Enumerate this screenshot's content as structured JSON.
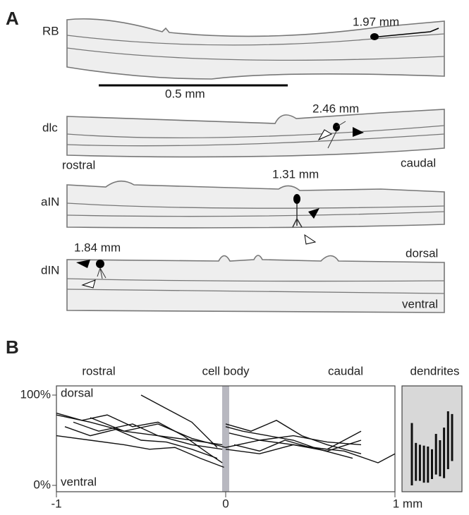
{
  "panel_a": {
    "label": "A",
    "scale_bar": "0.5 mm",
    "rostral": "rostral",
    "caudal": "caudal",
    "dorsal": "dorsal",
    "ventral": "ventral",
    "neurons": [
      {
        "name": "RB",
        "distance": "1.97 mm"
      },
      {
        "name": "dlc",
        "distance": "2.46 mm"
      },
      {
        "name": "aIN",
        "distance": "1.31 mm"
      },
      {
        "name": "dIN",
        "distance": "1.84 mm"
      }
    ]
  },
  "panel_b": {
    "label": "B",
    "chart_data": {
      "type": "line",
      "color": "#111111",
      "regions": [
        "rostral",
        "cell body",
        "caudal"
      ],
      "position_labels": [
        "dorsal",
        "ventral"
      ],
      "xlim": [
        -1,
        1
      ],
      "ylim": [
        0,
        100
      ],
      "xticks": [
        -1,
        0,
        {
          "value": 1,
          "label": "1 mm"
        }
      ],
      "yticks": [
        {
          "value": 0,
          "label": "0%"
        },
        {
          "value": 100,
          "label": "100%"
        }
      ],
      "series": [
        {
          "x": [
            -1,
            -0.8,
            -0.6,
            -0.4,
            -0.2,
            -0.02
          ],
          "values": [
            78,
            70,
            60,
            55,
            45,
            40
          ]
        },
        {
          "x": [
            -1,
            -0.85,
            -0.7,
            -0.55,
            -0.4,
            -0.25,
            -0.1,
            -0.02
          ],
          "values": [
            80,
            72,
            78,
            65,
            70,
            55,
            35,
            25
          ]
        },
        {
          "x": [
            -0.95,
            -0.8,
            -0.65,
            -0.5,
            -0.35,
            -0.2,
            -0.05
          ],
          "values": [
            65,
            55,
            62,
            50,
            48,
            40,
            30
          ]
        },
        {
          "x": [
            -1,
            -0.8,
            -0.6,
            -0.45,
            -0.3,
            -0.15,
            -0.01
          ],
          "values": [
            55,
            50,
            45,
            40,
            42,
            30,
            20
          ]
        },
        {
          "x": [
            -0.9,
            -0.75,
            -0.55,
            -0.4,
            -0.2,
            -0.02
          ],
          "values": [
            70,
            60,
            68,
            55,
            50,
            45
          ]
        },
        {
          "x": [
            -0.5,
            -0.35,
            -0.2,
            -0.05
          ],
          "values": [
            100,
            85,
            70,
            42
          ]
        },
        {
          "x": [
            -0.8,
            -0.6,
            -0.4,
            -0.2,
            0,
            0.2,
            0.4,
            0.6,
            0.8
          ],
          "values": [
            75,
            60,
            68,
            52,
            42,
            50,
            45,
            40,
            60
          ]
        },
        {
          "x": [
            0,
            0.15,
            0.3,
            0.45,
            0.6,
            0.8
          ],
          "values": [
            68,
            60,
            72,
            55,
            45,
            35
          ]
        },
        {
          "x": [
            0,
            0.1,
            0.25,
            0.4,
            0.55,
            0.75
          ],
          "values": [
            65,
            60,
            55,
            50,
            40,
            30
          ]
        },
        {
          "x": [
            0.05,
            0.2,
            0.35,
            0.5,
            0.7,
            0.9,
            1.0
          ],
          "values": [
            45,
            38,
            50,
            42,
            38,
            25,
            35
          ]
        },
        {
          "x": [
            0,
            0.2,
            0.4,
            0.6,
            0.8
          ],
          "values": [
            40,
            35,
            45,
            38,
            50
          ]
        },
        {
          "x": [
            0.02,
            0.2,
            0.4,
            0.6,
            0.8
          ],
          "values": [
            58,
            50,
            55,
            48,
            45
          ]
        }
      ],
      "dendrites": {
        "title": "dendrites",
        "ranges": [
          [
            0,
            69
          ],
          [
            5,
            47
          ],
          [
            5,
            45
          ],
          [
            3,
            44
          ],
          [
            3,
            43
          ],
          [
            7,
            40
          ],
          [
            12,
            57
          ],
          [
            10,
            50
          ],
          [
            8,
            64
          ],
          [
            18,
            82
          ],
          [
            27,
            79
          ]
        ]
      }
    }
  }
}
